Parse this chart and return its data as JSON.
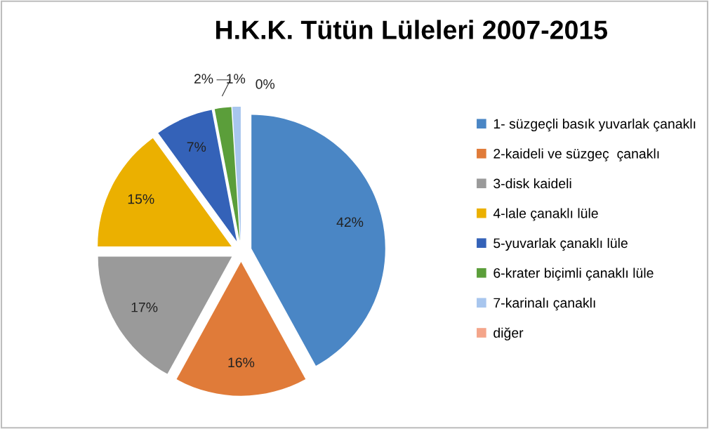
{
  "chart_data": {
    "type": "pie",
    "title": "H.K.K. Tütün Lüleleri 2007-2015",
    "categories": [
      "1- süzgeçli basık yuvarlak çanaklı",
      "2-kaideli ve süzgeç  çanaklı",
      "3-disk kaideli",
      "4-lale çanaklı lüle",
      "5-yuvarlak çanaklı lüle",
      "6-krater biçimli çanaklı lüle",
      "7-karinalı çanaklı",
      "diğer"
    ],
    "values": [
      42,
      16,
      17,
      15,
      7,
      2,
      1,
      0
    ],
    "colors": [
      "#4a86c5",
      "#e07b39",
      "#9a9a9a",
      "#ebb000",
      "#3462b8",
      "#5b9e3a",
      "#a8c6ee",
      "#f4a58a"
    ],
    "value_labels": [
      "42%",
      "16%",
      "17%",
      "15%",
      "7%",
      "2%",
      "1%",
      "0%"
    ],
    "legend": "right"
  }
}
